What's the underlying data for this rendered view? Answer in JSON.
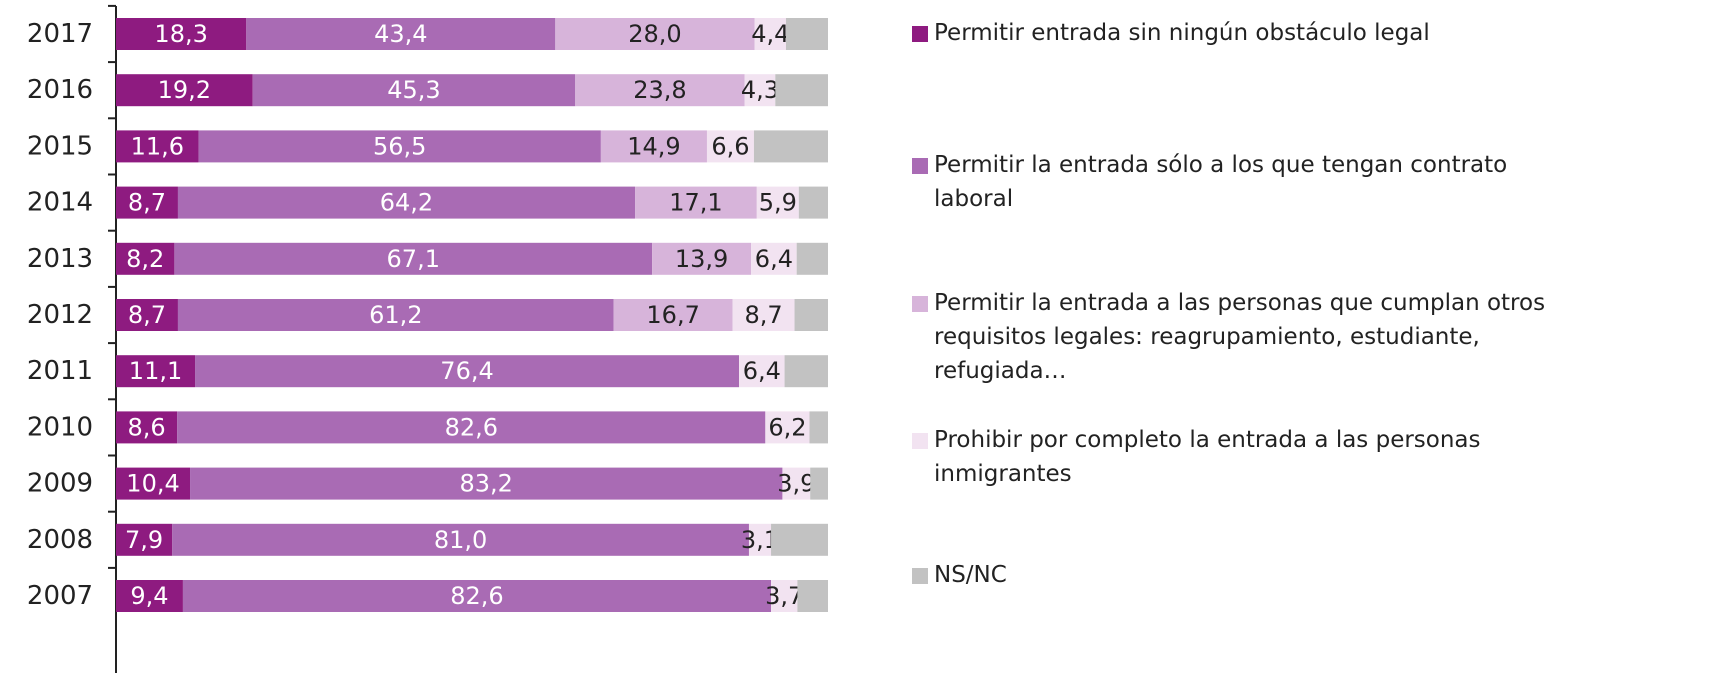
{
  "chart_data": {
    "type": "stacked-bar-horizontal",
    "categories": [
      "2017",
      "2016",
      "2015",
      "2014",
      "2013",
      "2012",
      "2011",
      "2010",
      "2009",
      "2008",
      "2007"
    ],
    "xlim": [
      0,
      100
    ],
    "series": [
      {
        "name": "Permitir entrada sin ningún obstáculo legal",
        "color": "#8e1b80",
        "values": [
          18.3,
          19.2,
          11.6,
          8.7,
          8.2,
          8.7,
          11.1,
          8.6,
          10.4,
          7.9,
          9.4
        ],
        "value_labels": [
          "18,3",
          "19,2",
          "11,6",
          "8,7",
          "8,2",
          "8,7",
          "11,1",
          "8,6",
          "10,4",
          "7,9",
          "9,4"
        ]
      },
      {
        "name": "Permitir la entrada sólo a los que tengan contrato laboral",
        "color": "#a96bb4",
        "values": [
          43.4,
          45.3,
          56.5,
          64.2,
          67.1,
          61.2,
          76.4,
          82.6,
          83.2,
          81.0,
          82.6
        ],
        "value_labels": [
          "43,4",
          "45,3",
          "56,5",
          "64,2",
          "67,1",
          "61,2",
          "76,4",
          "82,6",
          "83,2",
          "81,0",
          "82,6"
        ]
      },
      {
        "name": "Permitir la entrada a las personas que cumplan otros requisitos legales: reagrupamiento, estudiante, refugiada…",
        "color": "#d7b4da",
        "values": [
          28.0,
          23.8,
          14.9,
          17.1,
          13.9,
          16.7,
          null,
          null,
          null,
          null,
          null
        ],
        "value_labels": [
          "28,0",
          "23,8",
          "14,9",
          "17,1",
          "13,9",
          "16,7",
          null,
          null,
          null,
          null,
          null
        ]
      },
      {
        "name": "Prohibir por completo la entrada a las personas inmigrantes",
        "color": "#f2e3f1",
        "values": [
          4.4,
          4.3,
          6.6,
          5.9,
          6.4,
          8.7,
          6.4,
          6.2,
          3.9,
          3.1,
          3.7
        ],
        "value_labels": [
          "4,4",
          "4,3",
          "6,6",
          "5,9",
          "6,4",
          "8,7",
          "6,4",
          "6,2",
          "3,9",
          "3,1",
          "3,7"
        ]
      },
      {
        "name": "NS/NC",
        "color": "#c2c2c2",
        "values": [
          5.9,
          7.4,
          10.4,
          4.1,
          4.4,
          4.7,
          6.1,
          2.6,
          2.5,
          8.0,
          4.3
        ]
      }
    ]
  }
}
